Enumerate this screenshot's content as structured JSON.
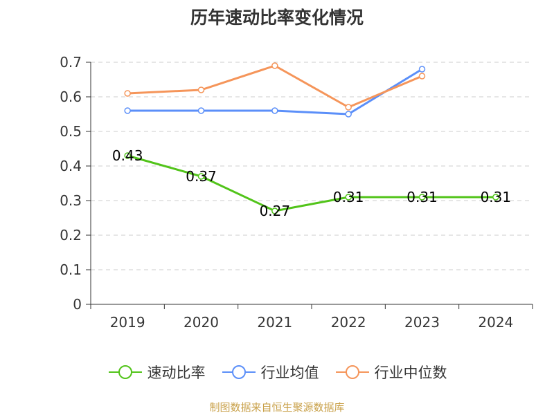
{
  "chart_data": {
    "type": "line",
    "title": "历年速动比率变化情况",
    "categories": [
      "2019",
      "2020",
      "2021",
      "2022",
      "2023",
      "2024"
    ],
    "ylim": [
      0,
      0.7
    ],
    "yticks": [
      "0",
      "0.1",
      "0.2",
      "0.3",
      "0.4",
      "0.5",
      "0.6",
      "0.7"
    ],
    "grid": true,
    "legend_position": "bottom",
    "series": [
      {
        "name": "速动比率",
        "color": "#52c41a",
        "values": [
          0.43,
          0.37,
          0.27,
          0.31,
          0.31,
          0.31
        ],
        "labels": [
          "0.43",
          "0.37",
          "0.27",
          "0.31",
          "0.31",
          "0.31"
        ],
        "show_labels": true
      },
      {
        "name": "行业均值",
        "color": "#5b8ff9",
        "values": [
          0.56,
          0.56,
          0.56,
          0.55,
          0.68,
          null
        ],
        "show_labels": false
      },
      {
        "name": "行业中位数",
        "color": "#f5955a",
        "values": [
          0.61,
          0.62,
          0.69,
          0.57,
          0.66,
          null
        ],
        "show_labels": false
      }
    ]
  },
  "footer": {
    "source": "制图数据来自恒生聚源数据库"
  }
}
